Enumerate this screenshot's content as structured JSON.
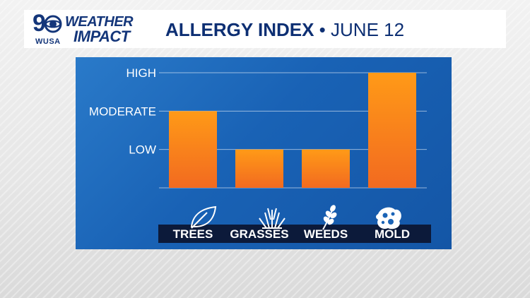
{
  "header": {
    "station_number": "9",
    "station_call": "WUSA",
    "brand_line1": "WEATHER",
    "brand_line2": "IMPACT",
    "title": "ALLERGY INDEX",
    "separator": "•",
    "date": "JUNE 12"
  },
  "colors": {
    "header_text": "#0d2f73",
    "panel_blue": "#1a63b6",
    "bar_top": "#ff9a17",
    "bar_bottom": "#f26a20",
    "label_strip": "#0c1a3a"
  },
  "icons": [
    "leaf-icon",
    "grass-icon",
    "weed-icon",
    "mold-icon"
  ],
  "chart_data": {
    "type": "bar",
    "title": "ALLERGY INDEX",
    "categories": [
      "TREES",
      "GRASSES",
      "WEEDS",
      "MOLD"
    ],
    "levels": [
      "LOW",
      "MODERATE",
      "HIGH"
    ],
    "values": [
      2,
      1,
      1,
      3
    ],
    "ylim": [
      0,
      3
    ],
    "grid": true,
    "legend": "none"
  }
}
